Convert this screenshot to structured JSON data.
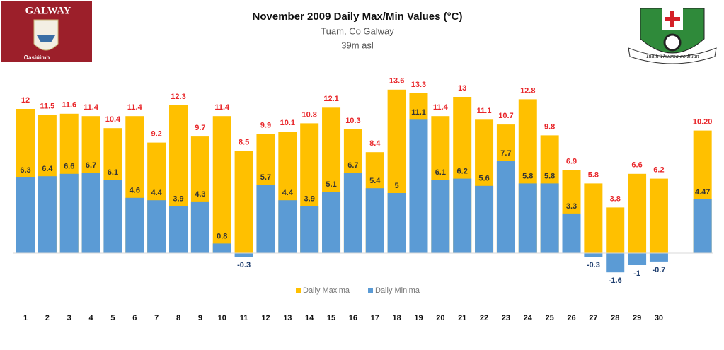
{
  "chart_data": {
    "type": "bar",
    "title": "November 2009 Daily Max/Min Values (°C)",
    "subtitle": "Tuam, Co Galway",
    "annotations": [
      "39m asl"
    ],
    "logos": {
      "left": [
        "GALWAY",
        "Oasiúimh"
      ],
      "right": [
        "Tuath Thuama go Buan"
      ]
    },
    "categories": [
      "1",
      "2",
      "3",
      "4",
      "5",
      "6",
      "7",
      "8",
      "9",
      "10",
      "11",
      "12",
      "13",
      "14",
      "15",
      "16",
      "17",
      "18",
      "19",
      "20",
      "21",
      "22",
      "23",
      "24",
      "25",
      "26",
      "27",
      "28",
      "29",
      "30",
      null
    ],
    "series": [
      {
        "name": "Daily Maxima",
        "color": "#ffc000",
        "values": [
          12,
          11.5,
          11.6,
          11.4,
          10.4,
          11.4,
          9.2,
          12.3,
          9.7,
          11.4,
          8.5,
          9.9,
          10.1,
          10.8,
          12.1,
          10.3,
          8.4,
          13.6,
          13.3,
          11.4,
          13,
          11.1,
          10.7,
          12.8,
          9.8,
          6.9,
          5.8,
          3.8,
          6.6,
          6.2,
          10.2
        ],
        "value_labels": [
          "12",
          "11.5",
          "11.6",
          "11.4",
          "10.4",
          "11.4",
          "9.2",
          "12.3",
          "9.7",
          "11.4",
          "8.5",
          "9.9",
          "10.1",
          "10.8",
          "12.1",
          "10.3",
          "8.4",
          "13.6",
          "13.3",
          "11.4",
          "13",
          "11.1",
          "10.7",
          "12.8",
          "9.8",
          "6.9",
          "5.8",
          "3.8",
          "6.6",
          "6.2",
          "10.20"
        ]
      },
      {
        "name": "Daily Minima",
        "color": "#5b9bd5",
        "values": [
          6.3,
          6.4,
          6.6,
          6.7,
          6.1,
          4.6,
          4.4,
          3.9,
          4.3,
          0.8,
          -0.3,
          5.7,
          4.4,
          3.9,
          5.1,
          6.7,
          5.4,
          5,
          11.1,
          6.1,
          6.2,
          5.6,
          7.7,
          5.8,
          5.8,
          3.3,
          -0.3,
          -1.6,
          -1,
          -0.7,
          4.47
        ]
      }
    ],
    "legend": "bottom"
  }
}
